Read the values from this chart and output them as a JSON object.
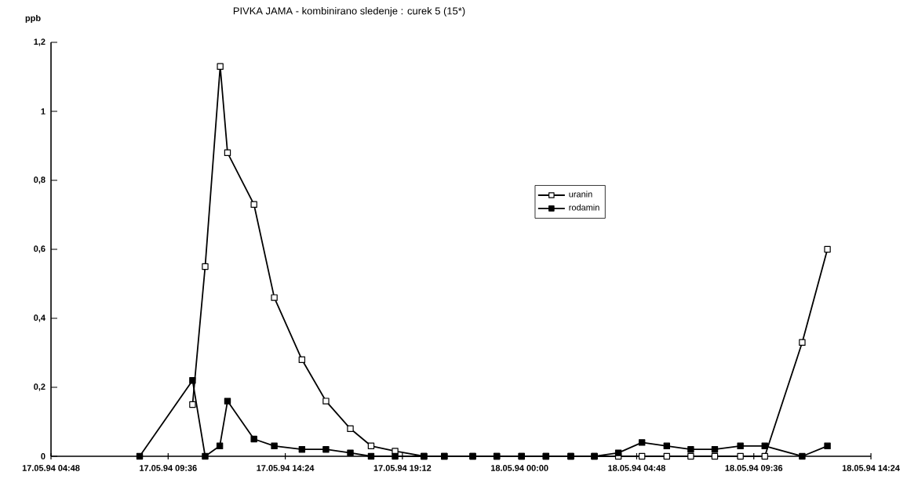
{
  "chart_data": {
    "type": "line",
    "title": "PIVKA JAMA  -  kombinirano sledenje : curek  5  (15*)",
    "ylabel": "ppb",
    "xlim": [
      "1994-05-17T04:48",
      "1994-05-18T14:24"
    ],
    "xticks": [
      {
        "value": "1994-05-17T04:48",
        "label": "17.05.94 04:48"
      },
      {
        "value": "1994-05-17T09:36",
        "label": "17.05.94 09:36"
      },
      {
        "value": "1994-05-17T14:24",
        "label": "17.05.94 14:24"
      },
      {
        "value": "1994-05-17T19:12",
        "label": "17.05.94 19:12"
      },
      {
        "value": "1994-05-18T00:00",
        "label": "18.05.94 00:00"
      },
      {
        "value": "1994-05-18T04:48",
        "label": "18.05.94 04:48"
      },
      {
        "value": "1994-05-18T09:36",
        "label": "18.05.94 09:36"
      },
      {
        "value": "1994-05-18T14:24",
        "label": "18.05.94 14:24"
      }
    ],
    "ylim": [
      0,
      1.2
    ],
    "yticks": [
      0,
      {
        "value": 0.2,
        "label": "0,2"
      },
      {
        "value": 0.4,
        "label": "0,4"
      },
      {
        "value": 0.6,
        "label": "0,6"
      },
      {
        "value": 0.8,
        "label": "0,8"
      },
      1,
      {
        "value": 1.2,
        "label": "1,2"
      }
    ],
    "marker": "square",
    "grid": false,
    "legend": "center",
    "line_style": "solid",
    "series": [
      {
        "name": "uranin",
        "color": "#000000",
        "x": [
          "1994-05-17T10:36",
          "1994-05-17T11:07",
          "1994-05-17T11:44",
          "1994-05-17T12:02",
          "1994-05-17T13:07",
          "1994-05-17T13:57",
          "1994-05-17T15:05",
          "1994-05-17T16:04",
          "1994-05-17T17:04",
          "1994-05-17T17:55",
          "1994-05-17T18:54",
          "1994-05-17T20:05",
          "1994-05-17T20:55",
          "1994-05-17T22:05",
          "1994-05-17T23:04",
          "1994-05-18T00:05",
          "1994-05-18T01:05",
          "1994-05-18T02:06",
          "1994-05-18T03:04",
          "1994-05-18T04:03",
          "1994-05-18T05:01",
          "1994-05-18T06:02",
          "1994-05-18T07:01",
          "1994-05-18T08:00",
          "1994-05-18T09:03",
          "1994-05-18T10:03",
          "1994-05-18T11:35",
          "1994-05-18T12:37"
        ],
        "values": [
          0.15,
          0.55,
          1.13,
          0.88,
          0.73,
          0.46,
          0.28,
          0.16,
          0.08,
          0.03,
          0.015,
          0,
          0,
          0,
          0,
          0,
          0,
          0,
          0,
          0,
          0,
          0,
          0,
          0,
          0,
          0,
          0.33,
          0.6
        ]
      },
      {
        "name": "rodamin",
        "color": "#000000",
        "x": [
          "1994-05-17T08:26",
          "1994-05-17T10:36",
          "1994-05-17T11:07",
          "1994-05-17T11:43",
          "1994-05-17T12:02",
          "1994-05-17T13:07",
          "1994-05-17T13:57",
          "1994-05-17T15:05",
          "1994-05-17T16:04",
          "1994-05-17T17:04",
          "1994-05-17T17:55",
          "1994-05-17T18:54",
          "1994-05-17T20:05",
          "1994-05-17T20:55",
          "1994-05-17T22:05",
          "1994-05-17T23:04",
          "1994-05-18T00:05",
          "1994-05-18T01:05",
          "1994-05-18T02:06",
          "1994-05-18T03:04",
          "1994-05-18T04:03",
          "1994-05-18T05:01",
          "1994-05-18T06:02",
          "1994-05-18T07:01",
          "1994-05-18T08:00",
          "1994-05-18T09:03",
          "1994-05-18T10:03",
          "1994-05-18T11:35",
          "1994-05-18T12:37"
        ],
        "values": [
          0,
          0.22,
          0,
          0.03,
          0.16,
          0.05,
          0.03,
          0.02,
          0.02,
          0.01,
          0,
          0,
          0,
          0,
          0,
          0,
          0,
          0,
          0,
          0,
          0.01,
          0.04,
          0.03,
          0.02,
          0.02,
          0.03,
          0.03,
          0,
          0.03
        ]
      }
    ]
  }
}
